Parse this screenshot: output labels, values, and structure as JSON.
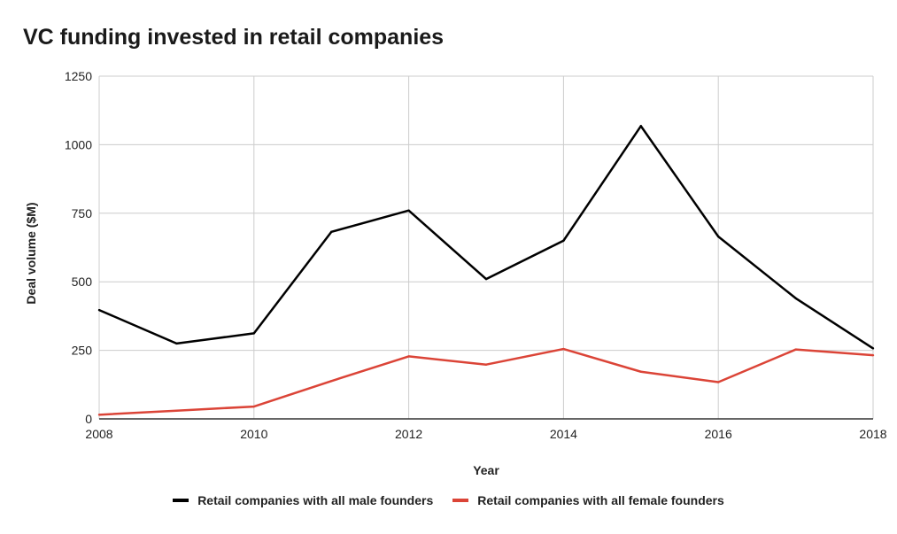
{
  "title": "VC funding invested in retail companies",
  "chart_data": {
    "type": "line",
    "title": "VC funding invested in retail companies",
    "xlabel": "Year",
    "ylabel": "Deal volume ($M)",
    "x": [
      2008,
      2009,
      2010,
      2011,
      2012,
      2013,
      2014,
      2015,
      2016,
      2017,
      2018
    ],
    "xlim": [
      2008,
      2018
    ],
    "ylim": [
      0,
      1250
    ],
    "x_ticks": [
      "2008",
      "2010",
      "2012",
      "2014",
      "2016",
      "2018"
    ],
    "y_ticks": [
      "0",
      "250",
      "500",
      "750",
      "1000",
      "1250"
    ],
    "grid": true,
    "legend_position": "bottom",
    "series": [
      {
        "name": "Retail companies with all male founders",
        "color": "#000000",
        "values": [
          397,
          275,
          312,
          682,
          760,
          510,
          650,
          1068,
          665,
          440,
          257
        ]
      },
      {
        "name": "Retail companies with all female founders",
        "color": "#db4437",
        "values": [
          15,
          30,
          45,
          138,
          228,
          198,
          255,
          172,
          134,
          253,
          232
        ]
      }
    ]
  }
}
